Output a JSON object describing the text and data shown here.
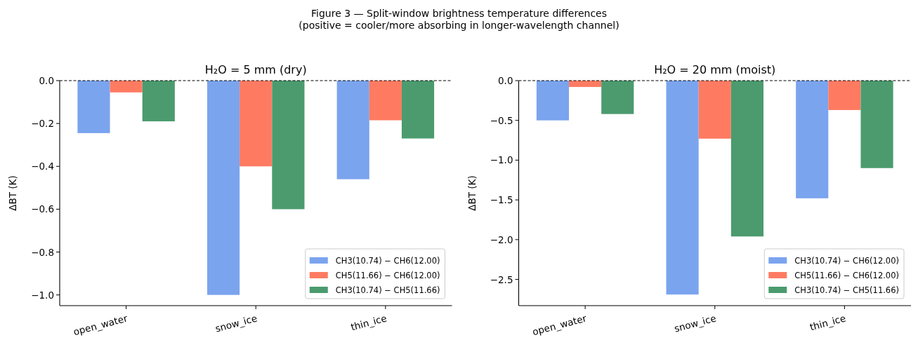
{
  "chart_data": [
    {
      "type": "bar",
      "title": "H₂O = 5 mm (dry)",
      "ylabel": "ΔBT (K)",
      "annotations": [
        "Figure 3 — Split-window brightness temperature differences",
        "(positive = cooler/more absorbing in longer-wavelength channel)"
      ],
      "categories": [
        "open_water",
        "snow_ice",
        "thin_ice"
      ],
      "series": [
        {
          "name": "CH3(10.74) − CH6(12.00)",
          "color": "#7ba4ee",
          "values": [
            -0.245,
            -1.0,
            -0.46
          ]
        },
        {
          "name": "CH5(11.66) − CH6(12.00)",
          "color": "#fe7b62",
          "values": [
            -0.055,
            -0.4,
            -0.185
          ]
        },
        {
          "name": "CH3(10.74) − CH5(11.66)",
          "color": "#4b9b6e",
          "values": [
            -0.19,
            -0.6,
            -0.27
          ]
        }
      ],
      "ylim": [
        -1.05,
        0
      ],
      "yticks": [
        {
          "value": 0,
          "label": "0.0"
        },
        {
          "value": -0.2,
          "label": "−0.2"
        },
        {
          "value": -0.4,
          "label": "−0.4"
        },
        {
          "value": -0.6,
          "label": "−0.6"
        },
        {
          "value": -0.8,
          "label": "−0.8"
        },
        {
          "value": -1.0,
          "label": "−1.0"
        }
      ],
      "ref_lines": [
        {
          "axis": "y",
          "value": 0,
          "color": "#000000",
          "line_style": "dashed"
        }
      ],
      "legend": "bottom right",
      "grid": false
    },
    {
      "type": "bar",
      "title": "H₂O = 20 mm (moist)",
      "ylabel": "ΔBT (K)",
      "categories": [
        "open_water",
        "snow_ice",
        "thin_ice"
      ],
      "series": [
        {
          "name": "CH3(10.74) − CH6(12.00)",
          "color": "#7ba4ee",
          "values": [
            -0.5,
            -2.69,
            -1.48
          ]
        },
        {
          "name": "CH5(11.66) − CH6(12.00)",
          "color": "#fe7b62",
          "values": [
            -0.08,
            -0.73,
            -0.37
          ]
        },
        {
          "name": "CH3(10.74) − CH5(11.66)",
          "color": "#4b9b6e",
          "values": [
            -0.42,
            -1.96,
            -1.1
          ]
        }
      ],
      "ylim": [
        -2.83,
        0
      ],
      "yticks": [
        {
          "value": 0,
          "label": "0.0"
        },
        {
          "value": -0.5,
          "label": "−0.5"
        },
        {
          "value": -1.0,
          "label": "−1.0"
        },
        {
          "value": -1.5,
          "label": "−1.5"
        },
        {
          "value": -2.0,
          "label": "−2.0"
        },
        {
          "value": -2.5,
          "label": "−2.5"
        }
      ],
      "ref_lines": [
        {
          "axis": "y",
          "value": 0,
          "color": "#000000",
          "line_style": "dashed"
        }
      ],
      "legend": "bottom right",
      "grid": false
    }
  ]
}
